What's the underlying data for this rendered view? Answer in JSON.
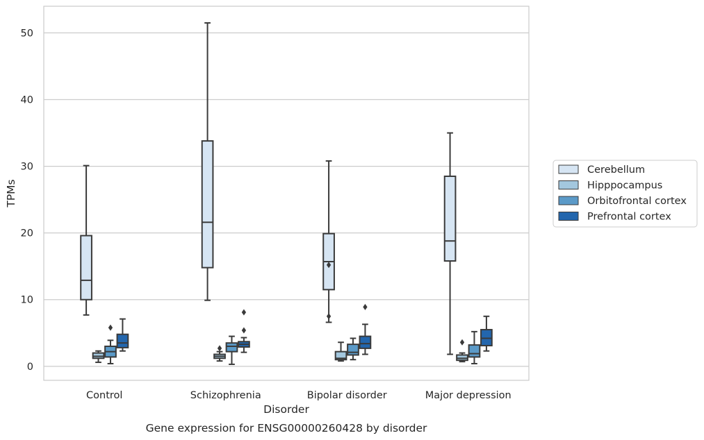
{
  "chart_data": {
    "type": "box",
    "title": "",
    "caption": "Gene expression for ENSG00000260428 by disorder",
    "xlabel": "Disorder",
    "ylabel": "TPMs",
    "ylim": [
      -2.1,
      54.0
    ],
    "yticks": [
      0,
      10,
      20,
      30,
      40,
      50
    ],
    "grid": "horizontal",
    "legend": "outside-right",
    "categories": [
      "Control",
      "Schizophrenia",
      "Bipolar disorder",
      "Major depression"
    ],
    "series": [
      {
        "name": "Cerebellum",
        "color": "#d6e5f3",
        "boxes": [
          {
            "whislo": 7.7,
            "q1": 10.0,
            "med": 12.9,
            "q3": 19.6,
            "whishi": 30.1,
            "fliers": []
          },
          {
            "whislo": 9.9,
            "q1": 14.8,
            "med": 21.6,
            "q3": 33.8,
            "whishi": 51.5,
            "fliers": []
          },
          {
            "whislo": 6.6,
            "q1": 11.5,
            "med": 15.7,
            "q3": 19.9,
            "whishi": 30.8,
            "fliers": [
              15.2,
              7.5
            ]
          },
          {
            "whislo": 1.8,
            "q1": 15.8,
            "med": 18.8,
            "q3": 28.5,
            "whishi": 35.0,
            "fliers": []
          }
        ]
      },
      {
        "name": "Hipppocampus",
        "color": "#a3c7de",
        "boxes": [
          {
            "whislo": 0.6,
            "q1": 1.2,
            "med": 1.5,
            "q3": 2.0,
            "whishi": 2.3,
            "fliers": []
          },
          {
            "whislo": 0.8,
            "q1": 1.2,
            "med": 1.5,
            "q3": 1.8,
            "whishi": 2.2,
            "fliers": [
              2.7
            ]
          },
          {
            "whislo": 0.8,
            "q1": 1.0,
            "med": 1.2,
            "q3": 2.2,
            "whishi": 3.6,
            "fliers": []
          },
          {
            "whislo": 0.7,
            "q1": 0.9,
            "med": 1.2,
            "q3": 1.7,
            "whishi": 2.0,
            "fliers": [
              3.6
            ]
          }
        ]
      },
      {
        "name": "Orbitofrontal cortex",
        "color": "#5b9ac8",
        "boxes": [
          {
            "whislo": 0.4,
            "q1": 1.4,
            "med": 2.2,
            "q3": 3.0,
            "whishi": 3.9,
            "fliers": [
              5.8
            ]
          },
          {
            "whislo": 0.3,
            "q1": 2.2,
            "med": 3.0,
            "q3": 3.5,
            "whishi": 4.5,
            "fliers": []
          },
          {
            "whislo": 1.0,
            "q1": 1.7,
            "med": 2.1,
            "q3": 3.3,
            "whishi": 4.2,
            "fliers": []
          },
          {
            "whislo": 0.4,
            "q1": 1.4,
            "med": 1.9,
            "q3": 3.2,
            "whishi": 5.2,
            "fliers": []
          }
        ]
      },
      {
        "name": "Prefrontal cortex",
        "color": "#2366ad",
        "boxes": [
          {
            "whislo": 2.3,
            "q1": 2.8,
            "med": 3.5,
            "q3": 4.8,
            "whishi": 7.1,
            "fliers": []
          },
          {
            "whislo": 2.1,
            "q1": 2.9,
            "med": 3.3,
            "q3": 3.7,
            "whishi": 4.3,
            "fliers": [
              8.1,
              5.4
            ]
          },
          {
            "whislo": 1.8,
            "q1": 2.7,
            "med": 3.4,
            "q3": 4.5,
            "whishi": 6.3,
            "fliers": [
              8.9
            ]
          },
          {
            "whislo": 2.3,
            "q1": 3.1,
            "med": 4.2,
            "q3": 5.5,
            "whishi": 7.5,
            "fliers": []
          }
        ]
      }
    ]
  }
}
